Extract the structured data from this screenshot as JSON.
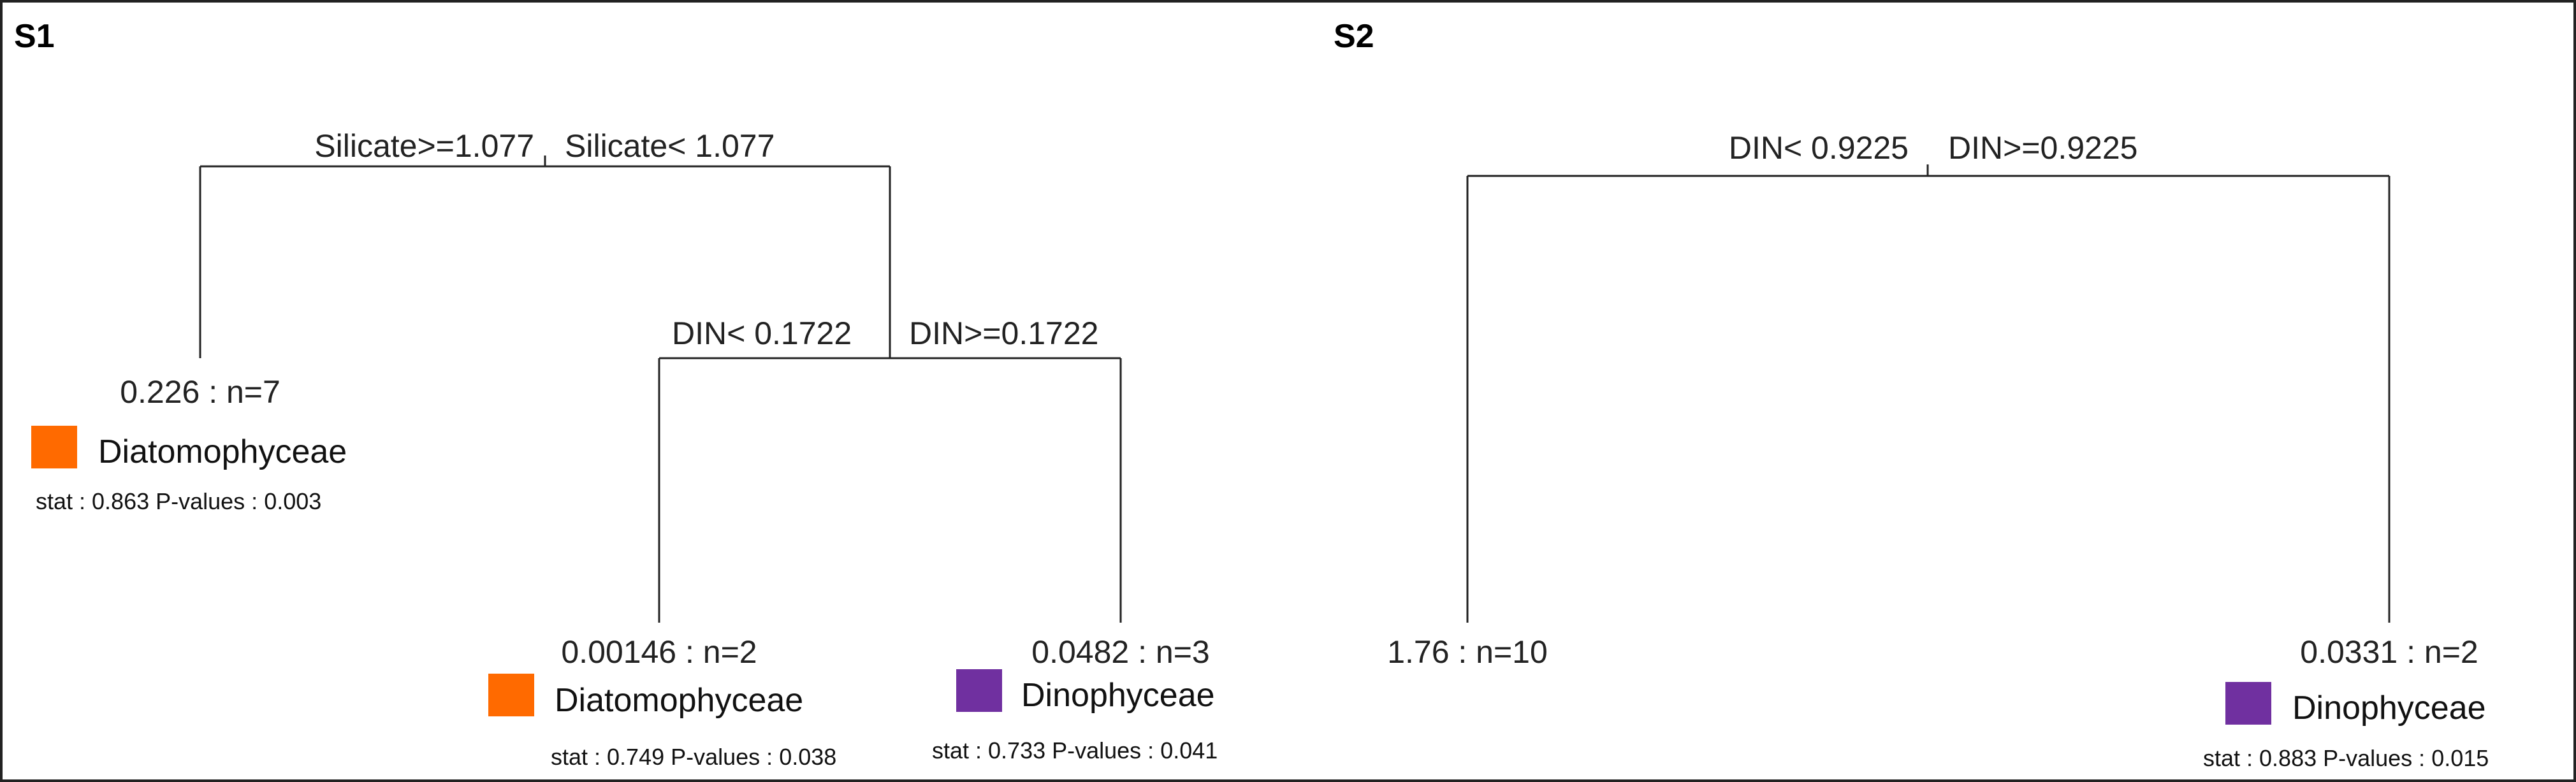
{
  "colors": {
    "diatomophyceae": "#ff6a00",
    "dinophyceae": "#7030a0",
    "line": "#222222"
  },
  "s1": {
    "label": "S1",
    "root_left": "Silicate>=1.077",
    "root_right": "Silicate< 1.077",
    "leaf1_value": "0.226 : n=7",
    "leaf1_taxon": "Diatomophyceae",
    "leaf1_stat": "stat : 0.863 P-values : 0.003",
    "inner_left": "DIN< 0.1722",
    "inner_right": "DIN>=0.1722",
    "leaf2_value": "0.00146 : n=2",
    "leaf2_taxon": "Diatomophyceae",
    "leaf2_stat": "stat : 0.749  P-values : 0.038",
    "leaf3_value": "0.0482 : n=3",
    "leaf3_taxon": "Dinophyceae",
    "leaf3_stat": "stat : 0.733 P-values : 0.041"
  },
  "s2": {
    "label": "S2",
    "root_left": "DIN< 0.9225",
    "root_right": "DIN>=0.9225",
    "leaf1_value": "1.76 : n=10",
    "leaf2_value": "0.0331 : n=2",
    "leaf2_taxon": "Dinophyceae",
    "leaf2_stat": "stat : 0.883 P-values : 0.015"
  }
}
